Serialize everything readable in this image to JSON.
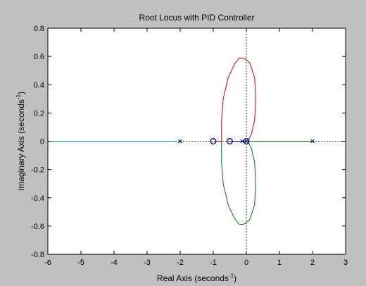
{
  "chart_data": {
    "type": "scatter",
    "title": "Root Locus with PID Controller",
    "xlabel": {
      "prefix": "Real Axis (seconds",
      "sup": "-1",
      "suffix": ")"
    },
    "ylabel": {
      "prefix": "Imaginary Axis (seconds",
      "sup": "-1",
      "suffix": ")"
    },
    "xlim": [
      -6,
      3
    ],
    "ylim": [
      -0.8,
      0.8
    ],
    "xticks": [
      -6,
      -5,
      -4,
      -3,
      -2,
      -1,
      0,
      1,
      2,
      3
    ],
    "yticks": [
      -0.8,
      -0.6,
      -0.4,
      -0.2,
      0,
      0.2,
      0.4,
      0.6,
      0.8
    ],
    "grid": false,
    "colors": {
      "figure_bg": "#c0c0c0",
      "axes_bg": "#ffffff",
      "branch_red": "#cc0000",
      "branch_green": "#007700",
      "branch_cyan": "#00aaaa",
      "branch_blue": "#0000cc",
      "markers": "#00008b",
      "ref_lines": "#000000"
    },
    "poles": [
      {
        "re": -2,
        "im": 0
      },
      {
        "re": 2,
        "im": 0
      },
      {
        "re": 0,
        "im": 0
      },
      {
        "re": -0.12,
        "im": 0
      }
    ],
    "zeros": [
      {
        "re": -1,
        "im": 0
      },
      {
        "re": -0.5,
        "im": 0
      },
      {
        "re": 0,
        "im": 0
      }
    ],
    "branches": [
      {
        "color": "branch_red",
        "points": [
          [
            0.05,
            0
          ],
          [
            0.15,
            0.05
          ],
          [
            0.25,
            0.15
          ],
          [
            0.28,
            0.3
          ],
          [
            0.25,
            0.45
          ],
          [
            0.1,
            0.555
          ],
          [
            -0.05,
            0.585
          ],
          [
            -0.2,
            0.59
          ],
          [
            -0.35,
            0.55
          ],
          [
            -0.55,
            0.45
          ],
          [
            -0.7,
            0.3
          ],
          [
            -0.75,
            0.15
          ],
          [
            -0.75,
            0
          ],
          [
            -0.95,
            0
          ]
        ]
      },
      {
        "color": "branch_green",
        "points": [
          [
            0.05,
            0
          ],
          [
            0.15,
            -0.05
          ],
          [
            0.25,
            -0.15
          ],
          [
            0.28,
            -0.3
          ],
          [
            0.25,
            -0.45
          ],
          [
            0.1,
            -0.555
          ],
          [
            -0.05,
            -0.585
          ],
          [
            -0.2,
            -0.59
          ],
          [
            -0.35,
            -0.55
          ],
          [
            -0.55,
            -0.45
          ],
          [
            -0.7,
            -0.3
          ],
          [
            -0.75,
            -0.15
          ],
          [
            -0.75,
            0
          ]
        ]
      },
      {
        "color": "branch_green",
        "points": [
          [
            0.05,
            0
          ],
          [
            2,
            0
          ]
        ]
      },
      {
        "color": "branch_cyan",
        "points": [
          [
            -2,
            0
          ],
          [
            -6,
            0
          ]
        ]
      },
      {
        "color": "branch_blue",
        "points": [
          [
            -0.12,
            0
          ],
          [
            -0.5,
            0
          ]
        ]
      },
      {
        "color": "branch_blue",
        "points": [
          [
            -0.12,
            0
          ],
          [
            0,
            0
          ]
        ]
      }
    ]
  }
}
